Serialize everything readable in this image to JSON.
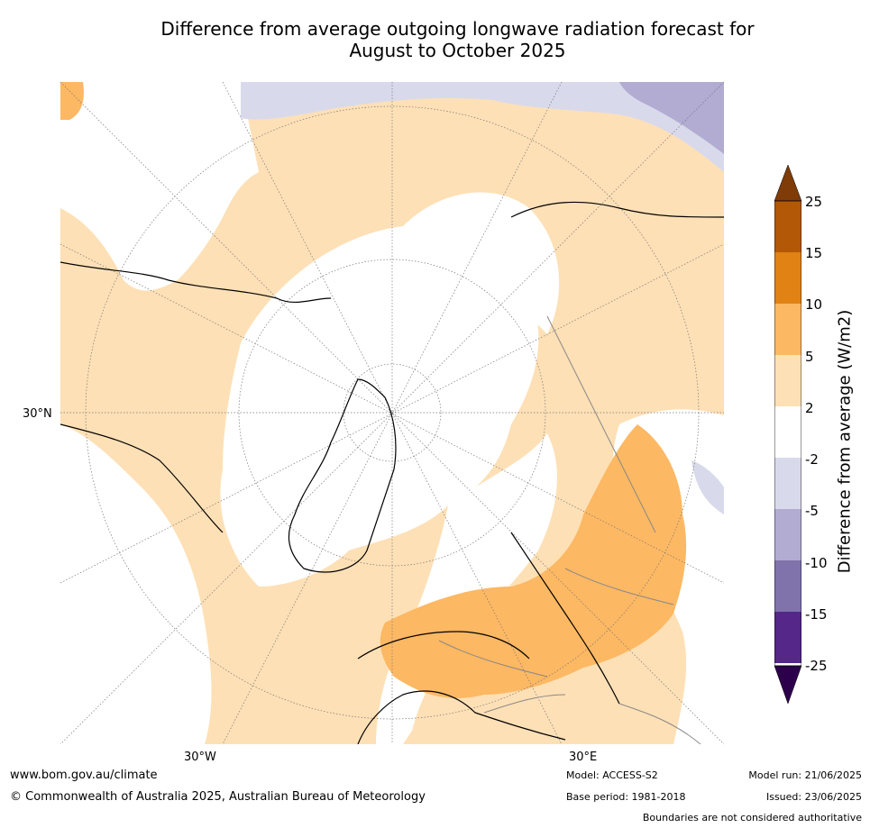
{
  "title_line1": "Difference from average outgoing longwave radiation forecast for",
  "title_line2": "August to October 2025",
  "map": {
    "label_lat": "30°N",
    "label_lon_w": "30°W",
    "label_lon_e": "30°E"
  },
  "colorbar": {
    "label": "Difference from average (W/m2)",
    "ticks": [
      "25",
      "15",
      "10",
      "5",
      "2",
      "-2",
      "-5",
      "-10",
      "-15",
      "-25"
    ],
    "colors": {
      "over": "#7f3b08",
      "b15_25": "#b35806",
      "b10_15": "#e08214",
      "b5_10": "#fdb863",
      "b2_5": "#fee0b6",
      "neutral": "#ffffff",
      "m2_5": "#d8daeb",
      "m5_10": "#b2abd2",
      "m10_15": "#8073ac",
      "m15_25": "#542788",
      "under": "#2d004b"
    }
  },
  "footer": {
    "website": "www.bom.gov.au/climate",
    "copyright": "© Commonwealth of Australia 2025, Australian Bureau of Meteorology",
    "model": "Model: ACCESS-S2",
    "base_period": "Base period: 1981-2018",
    "model_run": "Model run: 21/06/2025",
    "issued": "Issued: 23/06/2025",
    "disclaimer": "Boundaries are not considered authoritative"
  }
}
